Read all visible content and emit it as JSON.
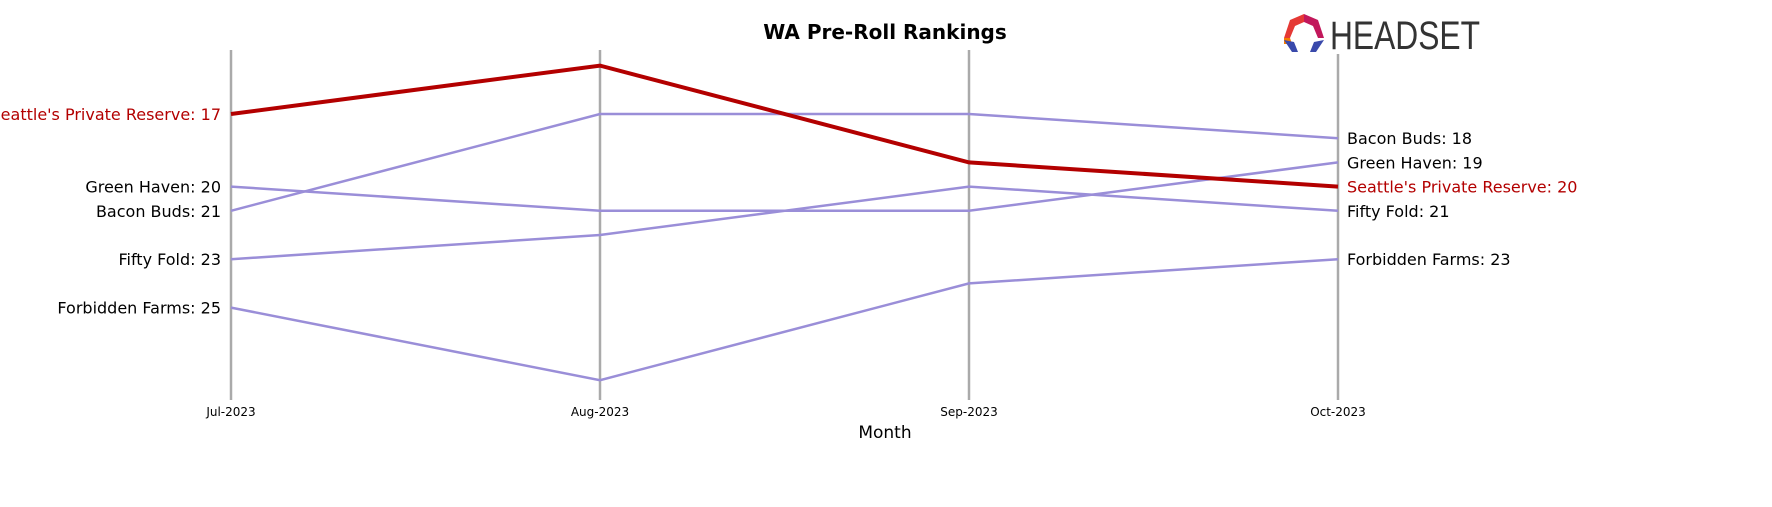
{
  "logo_text": "HEADSET",
  "chart_data": {
    "type": "line",
    "title": "WA Pre-Roll Rankings",
    "xlabel": "Month",
    "ylabel": "",
    "categories": [
      "Jul-2023",
      "Aug-2023",
      "Sep-2023",
      "Oct-2023"
    ],
    "y_inverted": true,
    "ylim": [
      14.35,
      28.8
    ],
    "grid": "vertical lines at each month",
    "series": [
      {
        "name": "Seattle's Private Reserve",
        "values": [
          17,
          15,
          19,
          20
        ],
        "color": "#b30000",
        "highlight": true
      },
      {
        "name": "Bacon Buds",
        "values": [
          21,
          17,
          17,
          18
        ],
        "color": "#9a8ed8"
      },
      {
        "name": "Green Haven",
        "values": [
          20,
          21,
          21,
          19
        ],
        "color": "#9a8ed8"
      },
      {
        "name": "Fifty Fold",
        "values": [
          23,
          22,
          20,
          21
        ],
        "color": "#9a8ed8"
      },
      {
        "name": "Forbidden Farms",
        "values": [
          25,
          28,
          24,
          23
        ],
        "color": "#9a8ed8"
      }
    ]
  }
}
